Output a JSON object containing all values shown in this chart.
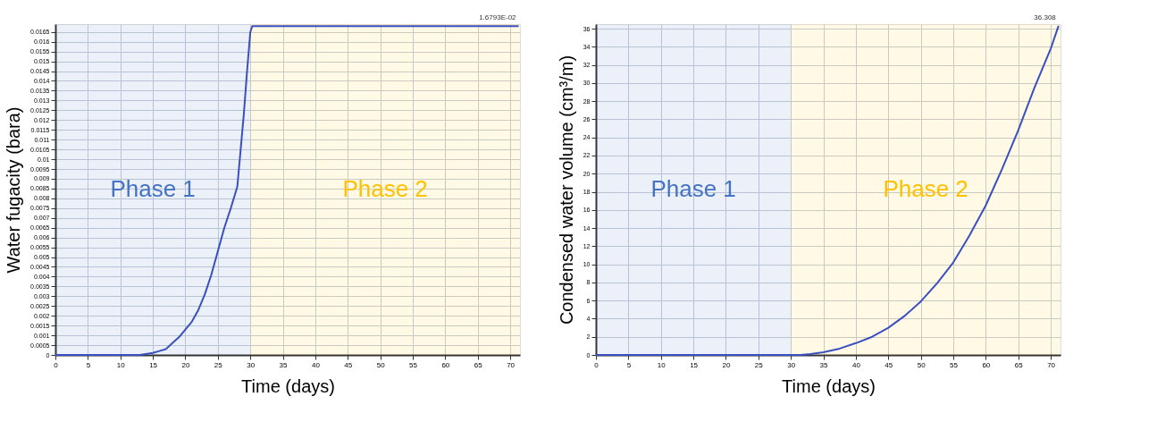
{
  "chart_data": [
    {
      "type": "line",
      "xlabel": "Time (days)",
      "ylabel": "Water fugacity (bara)",
      "x": [
        0,
        11,
        13,
        15,
        16,
        17,
        18,
        19,
        20,
        21,
        22,
        23,
        24,
        25,
        26,
        27,
        28,
        29,
        29.5,
        30,
        30.3,
        71.3
      ],
      "series": [
        {
          "color": "#3a4fc0",
          "values": [
            0,
            0,
            0,
            0.0001,
            0.0002,
            0.0003,
            0.0006,
            0.0009,
            0.0013,
            0.0017,
            0.0023,
            0.0031,
            0.0041,
            0.0053,
            0.0065,
            0.0075,
            0.0086,
            0.0123,
            0.0145,
            0.0165,
            0.016793,
            0.016793
          ]
        }
      ],
      "xlim": [
        0,
        71.5
      ],
      "xticks": [
        0,
        5,
        10,
        15,
        20,
        25,
        30,
        35,
        40,
        45,
        50,
        55,
        60,
        65,
        70
      ],
      "ylim": [
        0,
        0.0169
      ],
      "yticks": [
        0,
        0.0005,
        0.001,
        0.0015,
        0.002,
        0.0025,
        0.003,
        0.0035,
        0.004,
        0.0045,
        0.005,
        0.0055,
        0.006,
        0.0065,
        0.007,
        0.0075,
        0.008,
        0.0085,
        0.009,
        0.0095,
        0.01,
        0.0105,
        0.011,
        0.0115,
        0.012,
        0.0125,
        0.013,
        0.0135,
        0.014,
        0.0145,
        0.015,
        0.0155,
        0.016,
        0.0165
      ],
      "bands": [
        {
          "axis": "x",
          "from": 0,
          "to": 30,
          "label": "Phase 1",
          "color": "#4472c4"
        },
        {
          "axis": "x",
          "from": 30,
          "to": 71.5,
          "label": "Phase 2",
          "color": "#ffc000"
        }
      ],
      "annotations": [
        {
          "text": "1.6793E-02",
          "x": 71.3,
          "y": 0.016793
        }
      ],
      "grid": true,
      "marker": "none",
      "line_style": "solid"
    },
    {
      "type": "line",
      "xlabel": "Time (days)",
      "ylabel": "Condensed water volume (cm³/m)",
      "x": [
        0,
        31.5,
        33,
        35,
        37.5,
        40,
        42.5,
        45,
        47.5,
        50,
        52.5,
        55,
        57.5,
        60,
        62.5,
        65,
        67.5,
        70,
        71.2
      ],
      "series": [
        {
          "color": "#3a4fc0",
          "values": [
            0,
            0,
            0.1,
            0.3,
            0.7,
            1.3,
            2.0,
            3.0,
            4.3,
            5.9,
            7.9,
            10.2,
            13.2,
            16.5,
            20.5,
            24.8,
            29.5,
            33.8,
            36.308
          ]
        }
      ],
      "xlim": [
        0,
        71.5
      ],
      "xticks": [
        0,
        5,
        10,
        15,
        20,
        25,
        30,
        35,
        40,
        45,
        50,
        55,
        60,
        65,
        70
      ],
      "ylim": [
        0,
        36.5
      ],
      "yticks": [
        0,
        2,
        4,
        6,
        8,
        10,
        12,
        14,
        16,
        18,
        20,
        22,
        24,
        26,
        28,
        30,
        32,
        34,
        36
      ],
      "bands": [
        {
          "axis": "x",
          "from": 0,
          "to": 30,
          "label": "Phase 1",
          "color": "#4472c4"
        },
        {
          "axis": "x",
          "from": 30,
          "to": 71.5,
          "label": "Phase 2",
          "color": "#ffc000"
        }
      ],
      "annotations": [
        {
          "text": "36.308",
          "x": 71.2,
          "y": 36.308
        }
      ],
      "grid": true,
      "marker": "none",
      "line_style": "solid"
    }
  ]
}
